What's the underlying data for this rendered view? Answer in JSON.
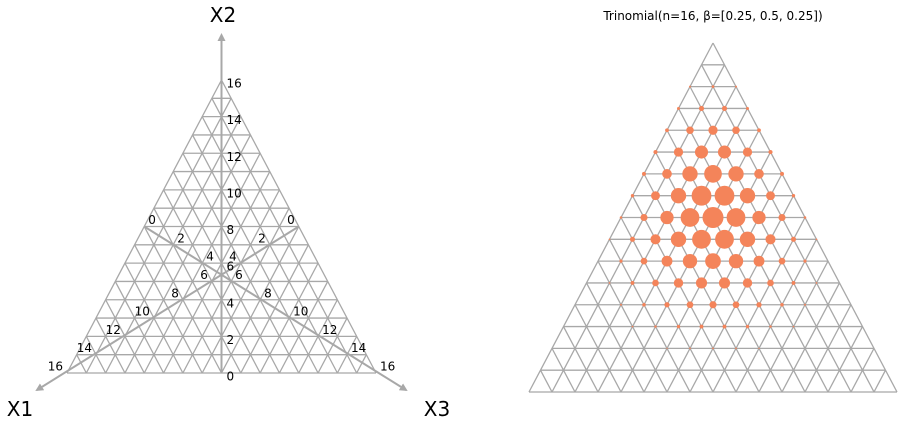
{
  "chart_data": [
    {
      "type": "ternary-grid",
      "n": 16,
      "vertex_labels": {
        "x1": "X1",
        "x2": "X2",
        "x3": "X3"
      },
      "axes": {
        "x2": {
          "ticks": [
            0,
            2,
            4,
            6,
            8,
            10,
            12,
            14,
            16
          ],
          "tick_labels": [
            "0",
            "2",
            "4",
            "6",
            "8",
            "10",
            "12",
            "14",
            "16"
          ]
        },
        "x1": {
          "ticks": [
            0,
            2,
            4,
            6,
            8,
            10,
            12,
            14,
            16
          ],
          "tick_labels": [
            "0",
            "2",
            "4",
            "6",
            "8",
            "10",
            "12",
            "14",
            "16"
          ]
        },
        "x3": {
          "ticks": [
            0,
            2,
            4,
            6,
            8,
            10,
            12,
            14,
            16
          ],
          "tick_labels": [
            "0",
            "2",
            "4",
            "6",
            "8",
            "10",
            "12",
            "14",
            "16"
          ]
        }
      },
      "colors": {
        "grid": "#a8a8a8",
        "axis": "#a8a8a8"
      }
    },
    {
      "type": "ternary-scatter",
      "title": "Trinomial(n=16, β=[0.25, 0.5, 0.25])",
      "n": 16,
      "beta": [
        0.25,
        0.5,
        0.25
      ],
      "series": [
        {
          "values": "probability mass of Trinomial(16; 0.25, 0.5, 0.25) at each lattice point (x1, x2, x3), x1+x2+x3=16, encoded as marker area"
        }
      ],
      "colors": {
        "grid": "#a8a8a8",
        "marker": "#f4845a"
      }
    }
  ]
}
